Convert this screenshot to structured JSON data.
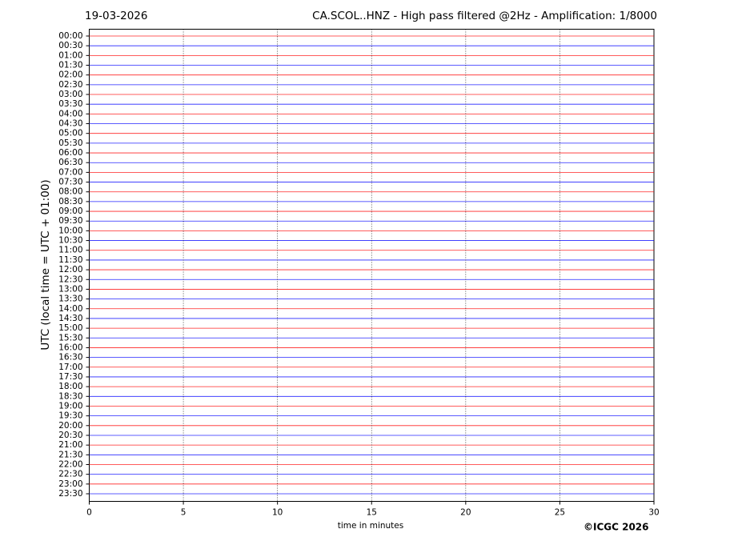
{
  "chart_data": {
    "type": "helicorder",
    "date": "19-03-2026",
    "title": "CA.SCOL..HNZ - High pass filtered @2Hz - Amplification: 1/8000",
    "x_label": "time in minutes",
    "y_label": "UTC (local time = UTC + 01:00)",
    "credit": "©ICGC 2026",
    "xlim": [
      0,
      30
    ],
    "xticks": [
      0,
      5,
      10,
      15,
      20,
      25,
      30
    ],
    "grid": true,
    "trace_colors": [
      "#ff0000",
      "#0000ff"
    ],
    "categories": [
      "00:00",
      "00:30",
      "01:00",
      "01:30",
      "02:00",
      "02:30",
      "03:00",
      "03:30",
      "04:00",
      "04:30",
      "05:00",
      "05:30",
      "06:00",
      "06:30",
      "07:00",
      "07:30",
      "08:00",
      "08:30",
      "09:00",
      "09:30",
      "10:00",
      "10:30",
      "11:00",
      "11:30",
      "12:00",
      "12:30",
      "13:00",
      "13:30",
      "14:00",
      "14:30",
      "15:00",
      "15:30",
      "16:00",
      "16:30",
      "17:00",
      "17:30",
      "18:00",
      "18:30",
      "19:00",
      "19:30",
      "20:00",
      "20:30",
      "21:00",
      "21:30",
      "22:00",
      "22:30",
      "23:00",
      "23:30"
    ]
  }
}
